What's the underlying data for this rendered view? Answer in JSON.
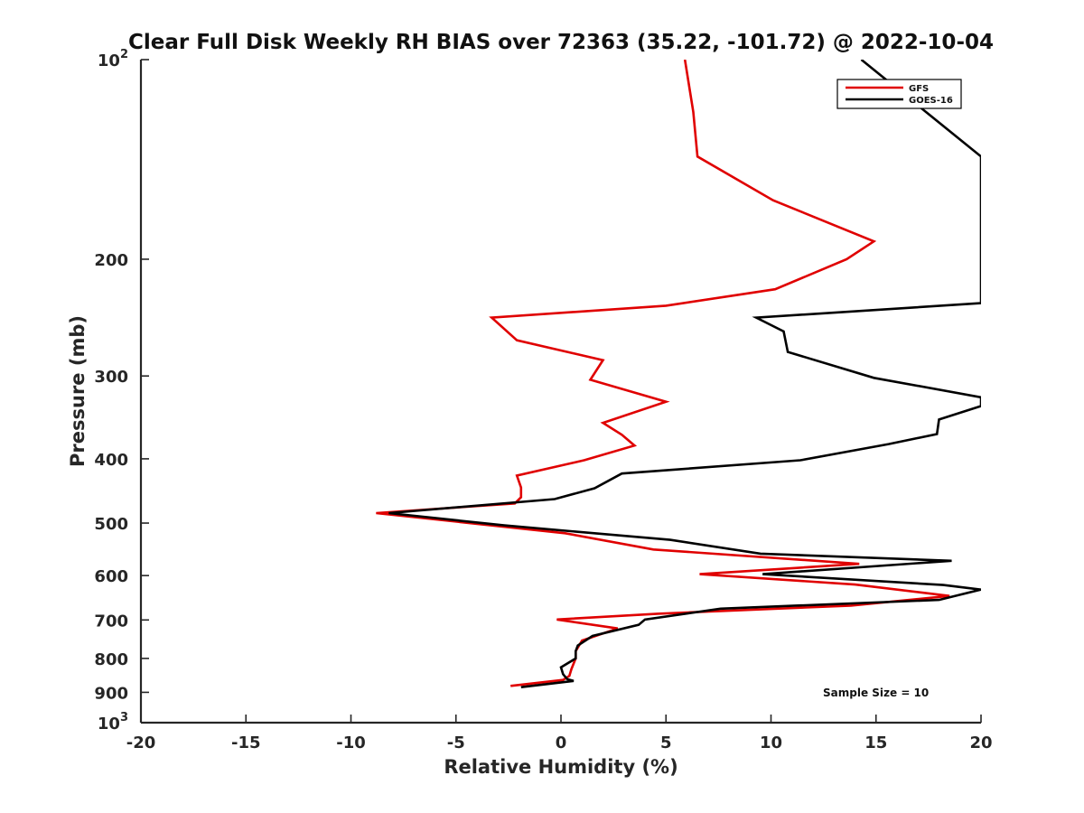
{
  "chart_data": {
    "type": "line",
    "title": "Clear Full Disk Weekly RH BIAS over 72363 (35.22, -101.72) @ 2022-10-04",
    "xlabel": "Relative Humidity (%)",
    "ylabel": "Pressure (mb)",
    "xlim": [
      -20,
      20
    ],
    "ylim": [
      100,
      1000
    ],
    "yscale": "log",
    "y_reversed": true,
    "grid": false,
    "x_ticks": [
      -20,
      -15,
      -10,
      -5,
      0,
      5,
      10,
      15,
      20
    ],
    "x_tick_labels": [
      "-20",
      "-15",
      "-10",
      "-5",
      "0",
      "5",
      "10",
      "15",
      "20"
    ],
    "y_ticks": [
      {
        "value": 100,
        "base": "10",
        "exp": "2"
      },
      {
        "value": 200,
        "label": "200"
      },
      {
        "value": 300,
        "label": "300"
      },
      {
        "value": 400,
        "label": "400"
      },
      {
        "value": 500,
        "label": "500"
      },
      {
        "value": 600,
        "label": "600"
      },
      {
        "value": 700,
        "label": "700"
      },
      {
        "value": 800,
        "label": "800"
      },
      {
        "value": 900,
        "label": "900"
      },
      {
        "value": 1000,
        "base": "10",
        "exp": "3"
      }
    ],
    "legend": {
      "location": "top-right",
      "entries": [
        "GFS",
        "GOES-16"
      ]
    },
    "annotation": "Sample Size = 10",
    "series": [
      {
        "name": "GFS",
        "color": "#e00000",
        "x": [
          5.9,
          6.3,
          6.5,
          10.1,
          14.9,
          13.6,
          10.2,
          5.0,
          -3.3,
          -2.1,
          2.0,
          1.4,
          5.0,
          2.0,
          2.9,
          3.5,
          1.1,
          -2.1,
          -1.9,
          -1.9,
          -2.2,
          -8.8,
          0.2,
          4.4,
          14.2,
          6.6,
          14.0,
          18.5,
          13.8,
          4.6,
          -0.2,
          2.7,
          1.0,
          0.7,
          0.7,
          0.5,
          0.4,
          0.1,
          -2.4
        ],
        "y": [
          100,
          120,
          140,
          163,
          188,
          200,
          222,
          235,
          245,
          265,
          284,
          304,
          328,
          353,
          368,
          382,
          402,
          424,
          442,
          457,
          467,
          483,
          518,
          548,
          576,
          597,
          619,
          644,
          666,
          685,
          699,
          721,
          752,
          780,
          800,
          830,
          850,
          862,
          880
        ]
      },
      {
        "name": "GOES-16",
        "color": "#000000",
        "x": [
          14.3,
          20.0,
          20.0,
          9.3,
          10.6,
          10.8,
          14.9,
          20.0,
          20.0,
          18.0,
          17.9,
          15.6,
          11.4,
          2.9,
          1.6,
          -0.3,
          -8.2,
          -2.7,
          5.2,
          9.5,
          18.6,
          9.6,
          18.2,
          20.0,
          18.0,
          7.6,
          4.0,
          3.7,
          1.5,
          0.8,
          0.7,
          0.7,
          0.0,
          0.1,
          0.3,
          0.6,
          -1.9
        ],
        "y": [
          100,
          140,
          233,
          245,
          257,
          276,
          302,
          323,
          333,
          349,
          367,
          380,
          402,
          421,
          443,
          460,
          483,
          504,
          530,
          556,
          570,
          597,
          620,
          630,
          653,
          673,
          699,
          712,
          740,
          765,
          780,
          800,
          825,
          845,
          860,
          865,
          884
        ]
      }
    ]
  }
}
